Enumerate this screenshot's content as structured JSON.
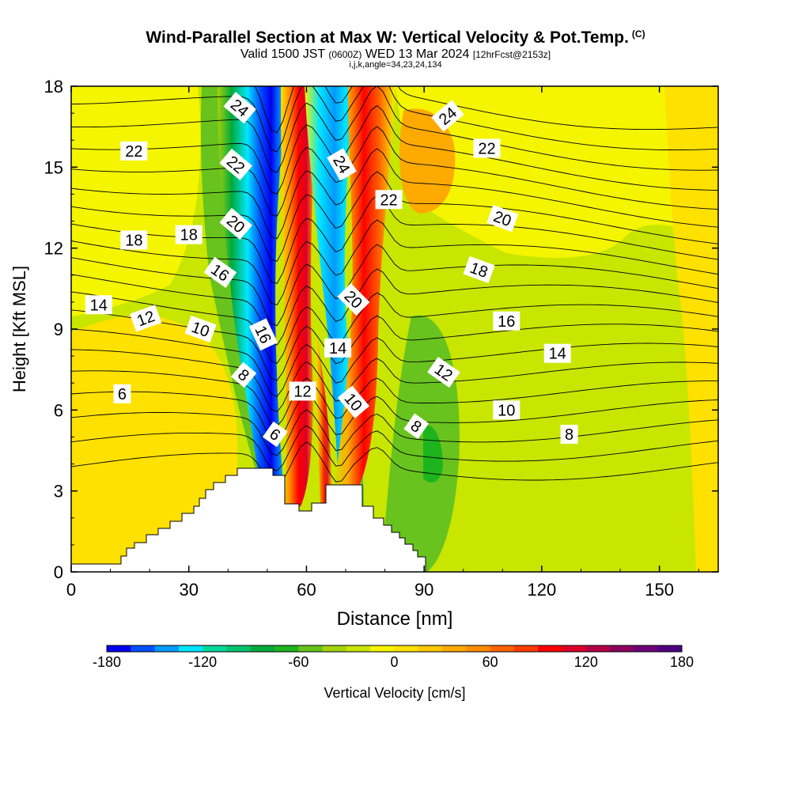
{
  "title": {
    "main": "Wind-Parallel Section at Max W: Vertical Velocity & Pot.Temp.",
    "copyright": "(C)",
    "valid_a": "Valid 1500 JST",
    "valid_b": "(0600Z)",
    "valid_c": "WED 13 Mar 2024",
    "valid_d": "[12hrFcst@2153z]",
    "indices": "i,j,k,angle=34,23,24,134"
  },
  "chart_data": {
    "type": "heatmap",
    "xlabel": "Distance [nm]",
    "ylabel": "Height [Kft MSL]",
    "xlim": [
      0,
      165
    ],
    "ylim": [
      0,
      18
    ],
    "x_ticks": [
      0,
      30,
      60,
      90,
      120,
      150
    ],
    "y_ticks": [
      0,
      3,
      6,
      9,
      12,
      15,
      18
    ],
    "fill_variable": "Vertical Velocity [cm/s]",
    "colorbar": {
      "label": "Vertical Velocity [cm/s]",
      "levels": [
        -180,
        -165,
        -150,
        -135,
        -120,
        -105,
        -90,
        -75,
        -60,
        -45,
        -30,
        -15,
        0,
        15,
        30,
        45,
        60,
        75,
        90,
        105,
        120,
        135,
        150,
        165,
        180
      ],
      "tick_labels": [
        "-180",
        "-120",
        "-60",
        "0",
        "60",
        "120",
        "180"
      ],
      "colors": [
        "#0000f0",
        "#0050ff",
        "#009aff",
        "#00e6ff",
        "#00d79b",
        "#00c36e",
        "#00aa3c",
        "#1eb41e",
        "#69c31e",
        "#a5d20a",
        "#c8e600",
        "#f5f500",
        "#ffe100",
        "#ffc800",
        "#ffaa00",
        "#ff8c00",
        "#ff6400",
        "#ff3c00",
        "#ff0000",
        "#dc0028",
        "#b40046",
        "#8c005f",
        "#6e0078",
        "#500082"
      ]
    },
    "contour_variable": "Potential temperature [C]",
    "contour_labels": [
      {
        "text": "24",
        "x": 43,
        "y": 17.2,
        "angle": 40
      },
      {
        "text": "24",
        "x": 96,
        "y": 16.9,
        "angle": -40
      },
      {
        "text": "22",
        "x": 16,
        "y": 15.6,
        "angle": 0
      },
      {
        "text": "22",
        "x": 42,
        "y": 15.1,
        "angle": 40
      },
      {
        "text": "24",
        "x": 69,
        "y": 15.1,
        "angle": 60
      },
      {
        "text": "22",
        "x": 81,
        "y": 13.8,
        "angle": 0
      },
      {
        "text": "22",
        "x": 106,
        "y": 15.7,
        "angle": 0
      },
      {
        "text": "20",
        "x": 42,
        "y": 12.9,
        "angle": 40
      },
      {
        "text": "20",
        "x": 110,
        "y": 13.1,
        "angle": 20
      },
      {
        "text": "18",
        "x": 16,
        "y": 12.3,
        "angle": 0
      },
      {
        "text": "18",
        "x": 30,
        "y": 12.5,
        "angle": 0
      },
      {
        "text": "18",
        "x": 104,
        "y": 11.2,
        "angle": 20
      },
      {
        "text": "16",
        "x": 38,
        "y": 11.1,
        "angle": 35
      },
      {
        "text": "20",
        "x": 72,
        "y": 10.1,
        "angle": 45
      },
      {
        "text": "14",
        "x": 7,
        "y": 9.9,
        "angle": 0
      },
      {
        "text": "12",
        "x": 19,
        "y": 9.4,
        "angle": -20
      },
      {
        "text": "10",
        "x": 33,
        "y": 9.0,
        "angle": 20
      },
      {
        "text": "16",
        "x": 49,
        "y": 8.8,
        "angle": 65
      },
      {
        "text": "16",
        "x": 111,
        "y": 9.3,
        "angle": 0
      },
      {
        "text": "14",
        "x": 68,
        "y": 8.3,
        "angle": 0
      },
      {
        "text": "14",
        "x": 124,
        "y": 8.1,
        "angle": 0
      },
      {
        "text": "8",
        "x": 44,
        "y": 7.3,
        "angle": 40
      },
      {
        "text": "12",
        "x": 95,
        "y": 7.4,
        "angle": 35
      },
      {
        "text": "6",
        "x": 13,
        "y": 6.6,
        "angle": 0
      },
      {
        "text": "12",
        "x": 59,
        "y": 6.7,
        "angle": 0
      },
      {
        "text": "10",
        "x": 72,
        "y": 6.3,
        "angle": 50
      },
      {
        "text": "10",
        "x": 111,
        "y": 6.0,
        "angle": 0
      },
      {
        "text": "8",
        "x": 88,
        "y": 5.4,
        "angle": 35
      },
      {
        "text": "6",
        "x": 52,
        "y": 5.1,
        "angle": 35
      },
      {
        "text": "8",
        "x": 127,
        "y": 5.1,
        "angle": 0
      }
    ]
  }
}
